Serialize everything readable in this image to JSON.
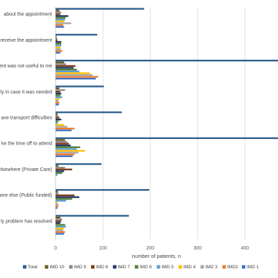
{
  "chart_data": {
    "type": "bar",
    "orientation": "horizontal",
    "xlabel": "number of patients, n",
    "xlim": [
      0,
      470
    ],
    "xticks": [
      0,
      100,
      200,
      300,
      400
    ],
    "grid": true,
    "legend_position": "bottom",
    "categories": [
      "about the appointment",
      "receive the appointment",
      "ent was not useful to me",
      "ly in case it was needed",
      "ave transport difficulties",
      "ke the time off to attend",
      "elsewhere (Private Care)",
      "here else (Public funded)",
      "ly problem has resolved"
    ],
    "series": [
      {
        "name": "Total",
        "color": "#2e5f8e",
        "values": [
          187,
          88,
          470,
          102,
          140,
          470,
          97,
          198,
          155
        ]
      },
      {
        "name": "IMD 10",
        "color": "#6b5a1e",
        "values": [
          8,
          2,
          18,
          8,
          4,
          20,
          6,
          5,
          10
        ]
      },
      {
        "name": "IMD 9",
        "color": "#8a8a8a",
        "values": [
          12,
          3,
          22,
          20,
          6,
          24,
          20,
          6,
          14
        ]
      },
      {
        "name": "IMD 8",
        "color": "#7d3b1a",
        "values": [
          10,
          4,
          42,
          10,
          8,
          28,
          35,
          40,
          12
        ]
      },
      {
        "name": "IMD 7",
        "color": "#1f3864",
        "values": [
          27,
          12,
          38,
          12,
          12,
          32,
          18,
          50,
          10
        ]
      },
      {
        "name": "IMD 6",
        "color": "#548235",
        "values": [
          21,
          12,
          45,
          10,
          6,
          52,
          14,
          35,
          20
        ]
      },
      {
        "name": "IMD 5",
        "color": "#5b9bd5",
        "values": [
          20,
          12,
          50,
          14,
          4,
          45,
          4,
          22,
          22
        ]
      },
      {
        "name": "IMD 4",
        "color": "#ffc000",
        "values": [
          18,
          10,
          72,
          8,
          18,
          62,
          0,
          4,
          18
        ]
      },
      {
        "name": "IMD 3",
        "color": "#a5a5a5",
        "values": [
          33,
          11,
          78,
          6,
          25,
          48,
          0,
          6,
          16
        ]
      },
      {
        "name": "IMD2",
        "color": "#ed7d31",
        "values": [
          16,
          14,
          90,
          8,
          40,
          40,
          0,
          6,
          20
        ]
      },
      {
        "name": "IMD 1",
        "color": "#4472c4",
        "values": [
          18,
          10,
          85,
          7,
          34,
          36,
          0,
          4,
          18
        ]
      }
    ]
  }
}
